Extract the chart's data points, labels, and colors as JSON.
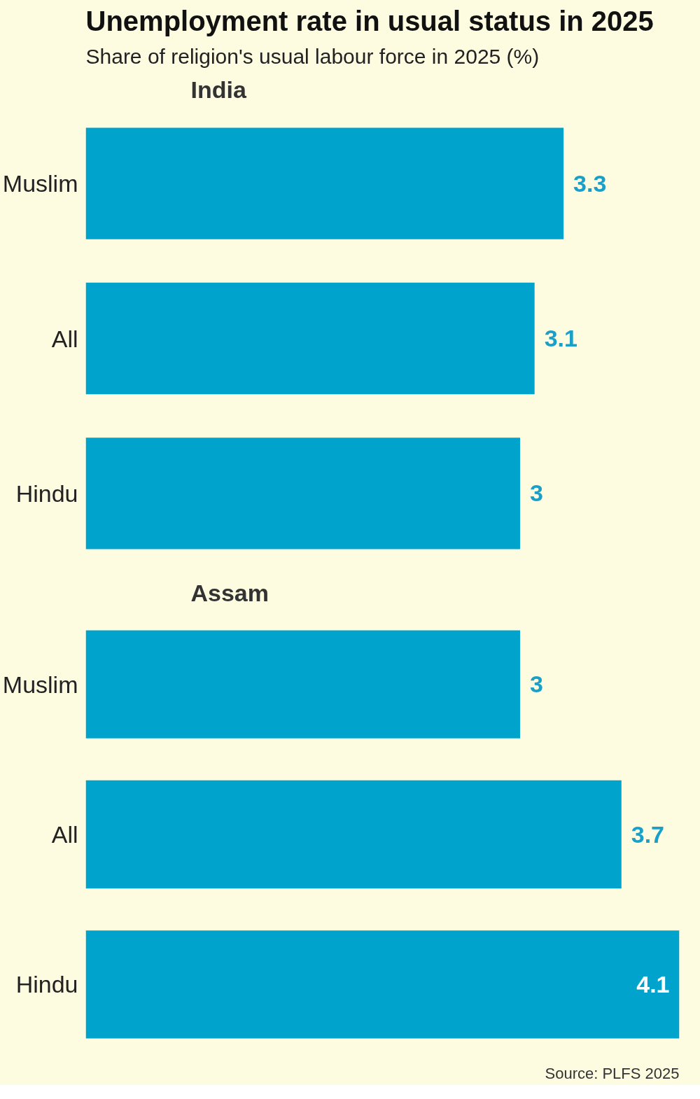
{
  "chart_data": [
    {
      "type": "bar",
      "orientation": "horizontal",
      "title": "Unemployment rate in usual status in 2025",
      "subtitle": "Share of religion's usual labour force in 2025 (%)",
      "xlabel": "India",
      "categories": [
        "Muslim",
        "All",
        "Hindu"
      ],
      "values": [
        3.3,
        3.1,
        3
      ],
      "color": "#00a3cc",
      "data_labels": true,
      "tick_labels": "y"
    },
    {
      "type": "bar",
      "orientation": "horizontal",
      "xlabel": "Assam",
      "categories": [
        "Muslim",
        "All",
        "Hindu"
      ],
      "values": [
        3,
        3.7,
        4.1
      ],
      "color": "#00a3cc",
      "data_labels": true,
      "tick_labels": "y",
      "annotations": [
        "Source: PLFS 2025"
      ]
    }
  ]
}
